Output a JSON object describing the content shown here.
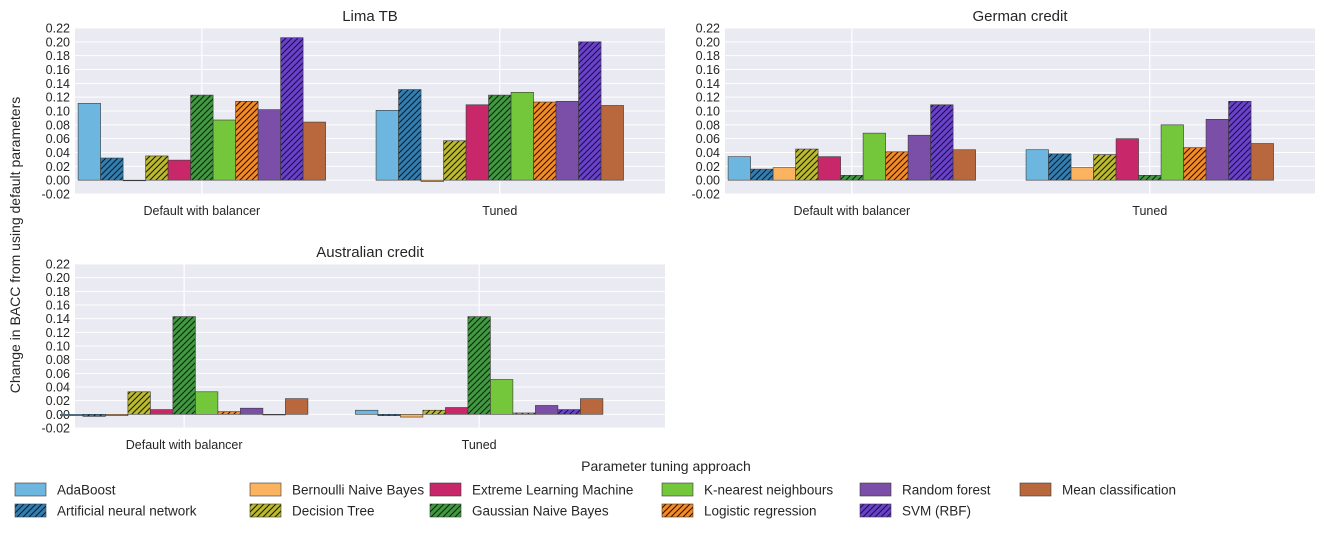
{
  "figure": {
    "ylabel": "Change in BACC from using default parameters",
    "xlabel": "Parameter tuning approach"
  },
  "colors": {
    "AdaBoost": "#6db6e0",
    "Artificial neural network": "#2f7fb5",
    "Bernoulli Naive Bayes": "#fbb360",
    "Decision Tree": "#bcbb2b",
    "Extreme Learning Machine": "#c8286a",
    "Gaussian Naive Bayes": "#3e9c3e",
    "K-nearest neighbours": "#74c63a",
    "Logistic regression": "#f88a22",
    "Random forest": "#7b4ea7",
    "SVM (RBF)": "#6a3fd4",
    "Mean classification": "#b9673c",
    "plot_background": "#eaeaf2",
    "grid": "#ffffff"
  },
  "legend": {
    "placement": "bottom",
    "entries": [
      {
        "name": "AdaBoost",
        "hatch": false
      },
      {
        "name": "Artificial neural network",
        "hatch": true
      },
      {
        "name": "Bernoulli Naive Bayes",
        "hatch": false
      },
      {
        "name": "Decision Tree",
        "hatch": true
      },
      {
        "name": "Extreme Learning Machine",
        "hatch": false
      },
      {
        "name": "Gaussian Naive Bayes",
        "hatch": true
      },
      {
        "name": "K-nearest neighbours",
        "hatch": false
      },
      {
        "name": "Logistic regression",
        "hatch": true
      },
      {
        "name": "Random forest",
        "hatch": false
      },
      {
        "name": "SVM (RBF)",
        "hatch": true
      },
      {
        "name": "Mean classification",
        "hatch": false
      }
    ]
  },
  "chart_data": [
    {
      "type": "bar",
      "title": "Lima TB",
      "categories": [
        "Default with balancer",
        "Tuned"
      ],
      "ylim": [
        -0.02,
        0.22
      ],
      "yticks": [
        "-0.02",
        "0.00",
        "0.02",
        "0.04",
        "0.06",
        "0.08",
        "0.10",
        "0.12",
        "0.14",
        "0.16",
        "0.18",
        "0.20",
        "0.22"
      ],
      "grid": true,
      "series": [
        {
          "name": "AdaBoost",
          "values": [
            0.111,
            0.101
          ]
        },
        {
          "name": "Artificial neural network",
          "values": [
            0.032,
            0.131
          ]
        },
        {
          "name": "Bernoulli Naive Bayes",
          "values": [
            0.0,
            -0.002
          ]
        },
        {
          "name": "Decision Tree",
          "values": [
            0.035,
            0.057
          ]
        },
        {
          "name": "Extreme Learning Machine",
          "values": [
            0.029,
            0.109
          ]
        },
        {
          "name": "Gaussian Naive Bayes",
          "values": [
            0.123,
            0.123
          ]
        },
        {
          "name": "K-nearest neighbours",
          "values": [
            0.087,
            0.127
          ]
        },
        {
          "name": "Logistic regression",
          "values": [
            0.114,
            0.113
          ]
        },
        {
          "name": "Random forest",
          "values": [
            0.102,
            0.114
          ]
        },
        {
          "name": "SVM (RBF)",
          "values": [
            0.206,
            0.2
          ]
        },
        {
          "name": "Mean classification",
          "values": [
            0.084,
            0.108
          ]
        }
      ]
    },
    {
      "type": "bar",
      "title": "German credit",
      "categories": [
        "Default with balancer",
        "Tuned"
      ],
      "ylim": [
        -0.02,
        0.22
      ],
      "yticks": [
        "-0.02",
        "0.00",
        "0.02",
        "0.04",
        "0.06",
        "0.08",
        "0.10",
        "0.12",
        "0.14",
        "0.16",
        "0.18",
        "0.20",
        "0.22"
      ],
      "grid": true,
      "series": [
        {
          "name": "AdaBoost",
          "values": [
            0.034,
            0.044
          ]
        },
        {
          "name": "Artificial neural network",
          "values": [
            0.016,
            0.038
          ]
        },
        {
          "name": "Bernoulli Naive Bayes",
          "values": [
            0.018,
            0.018
          ]
        },
        {
          "name": "Decision Tree",
          "values": [
            0.045,
            0.037
          ]
        },
        {
          "name": "Extreme Learning Machine",
          "values": [
            0.034,
            0.06
          ]
        },
        {
          "name": "Gaussian Naive Bayes",
          "values": [
            0.007,
            0.007
          ]
        },
        {
          "name": "K-nearest neighbours",
          "values": [
            0.068,
            0.08
          ]
        },
        {
          "name": "Logistic regression",
          "values": [
            0.041,
            0.047
          ]
        },
        {
          "name": "Random forest",
          "values": [
            0.065,
            0.088
          ]
        },
        {
          "name": "SVM (RBF)",
          "values": [
            0.109,
            0.114
          ]
        },
        {
          "name": "Mean classification",
          "values": [
            0.044,
            0.053
          ]
        }
      ]
    },
    {
      "type": "bar",
      "title": "Australian credit",
      "categories": [
        "Default with balancer",
        "Tuned"
      ],
      "ylim": [
        -0.02,
        0.22
      ],
      "yticks": [
        "-0.02",
        "0.00",
        "0.02",
        "0.04",
        "0.06",
        "0.08",
        "0.10",
        "0.12",
        "0.14",
        "0.16",
        "0.18",
        "0.20",
        "0.22"
      ],
      "grid": true,
      "series": [
        {
          "name": "AdaBoost",
          "values": [
            -0.002,
            0.006
          ]
        },
        {
          "name": "Artificial neural network",
          "values": [
            -0.003,
            -0.002
          ]
        },
        {
          "name": "Bernoulli Naive Bayes",
          "values": [
            -0.002,
            -0.004
          ]
        },
        {
          "name": "Decision Tree",
          "values": [
            0.033,
            0.006
          ]
        },
        {
          "name": "Extreme Learning Machine",
          "values": [
            0.007,
            0.01
          ]
        },
        {
          "name": "Gaussian Naive Bayes",
          "values": [
            0.143,
            0.143
          ]
        },
        {
          "name": "K-nearest neighbours",
          "values": [
            0.033,
            0.051
          ]
        },
        {
          "name": "Logistic regression",
          "values": [
            0.004,
            0.002
          ]
        },
        {
          "name": "Random forest",
          "values": [
            0.009,
            0.013
          ]
        },
        {
          "name": "SVM (RBF)",
          "values": [
            0.0,
            0.007
          ]
        },
        {
          "name": "Mean classification",
          "values": [
            0.023,
            0.023
          ]
        }
      ]
    }
  ]
}
